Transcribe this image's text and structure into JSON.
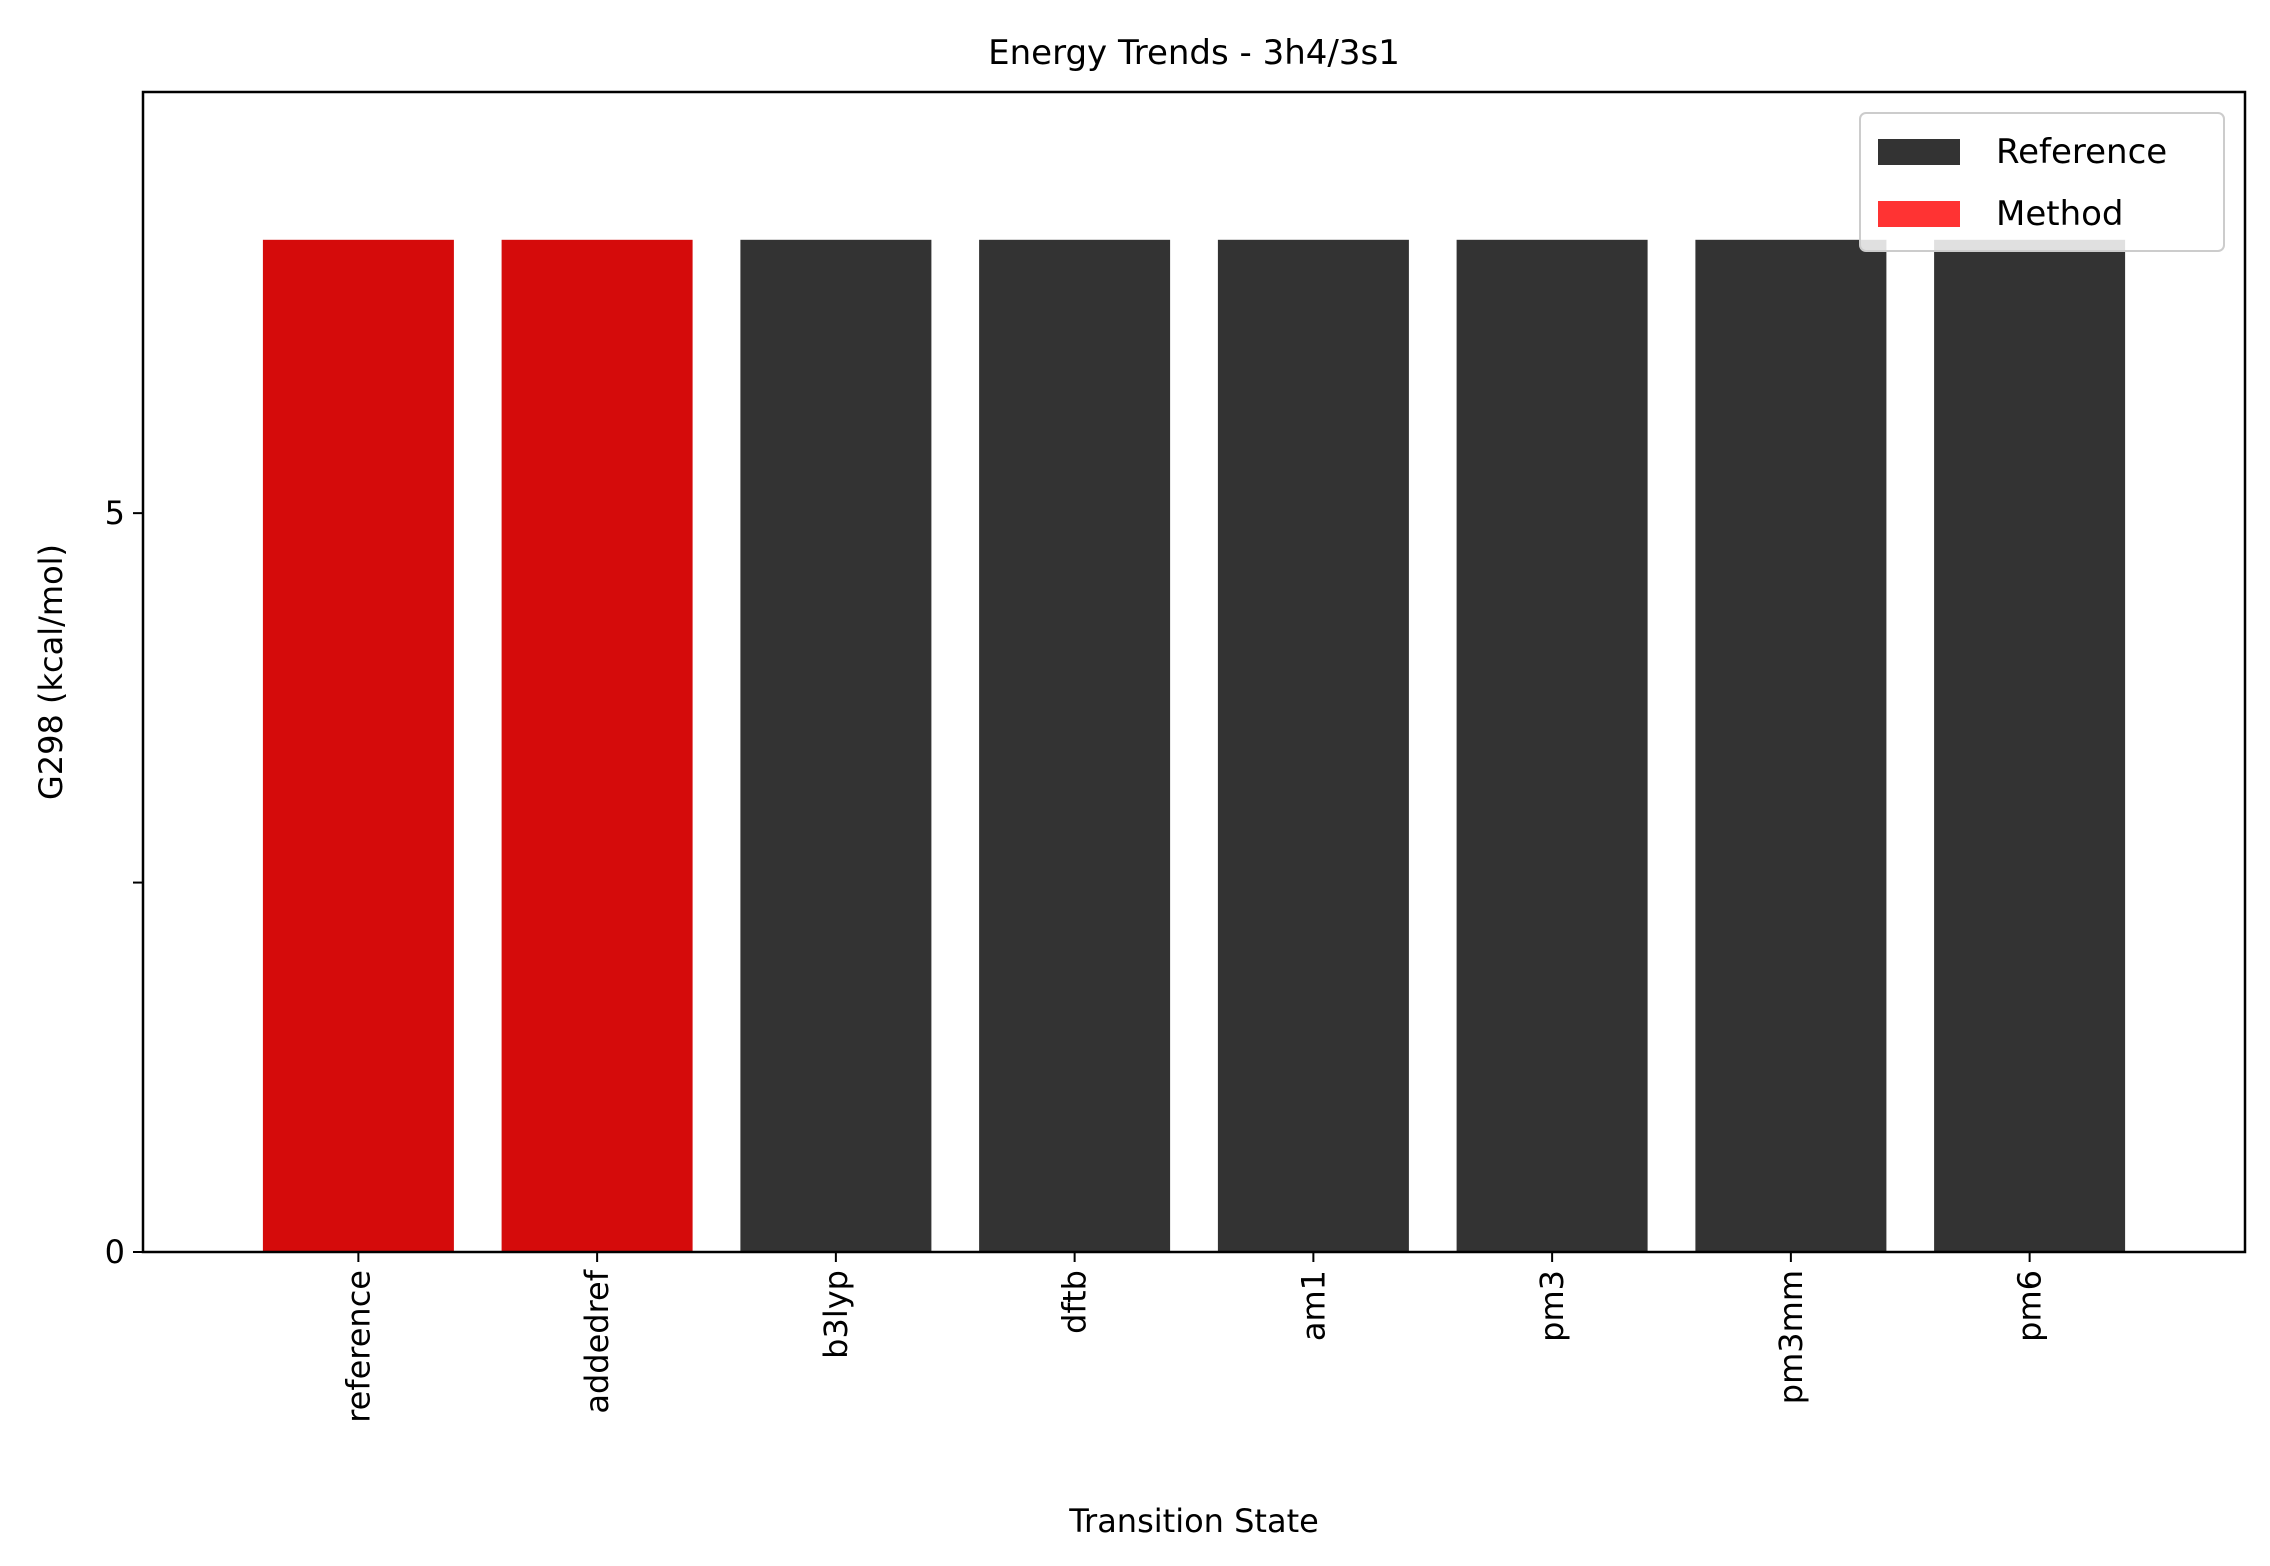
{
  "chart_data": {
    "type": "bar",
    "title": "Energy Trends - 3h4/3s1",
    "xlabel": "Transition State",
    "ylabel": "G298 (kcal/mol)",
    "categories": [
      "reference",
      "addedref",
      "b3lyp",
      "dftb",
      "am1",
      "pm3",
      "pm3mm",
      "pm6"
    ],
    "values": [
      6.85,
      6.85,
      6.85,
      6.85,
      6.85,
      6.85,
      6.85,
      6.85
    ],
    "bar_groups": [
      "Method",
      "Method",
      "Reference",
      "Reference",
      "Reference",
      "Reference",
      "Reference",
      "Reference"
    ],
    "ylim": [
      0,
      7.85
    ],
    "yticks": [
      {
        "value": 0,
        "label": "0"
      },
      {
        "value": 2.5,
        "label": ""
      },
      {
        "value": 5,
        "label": "5"
      }
    ],
    "grid": false,
    "legend": {
      "placement": "top-right",
      "entries": [
        {
          "label": "Reference",
          "color": "#333333"
        },
        {
          "label": "Method",
          "color": "#ff3333"
        }
      ]
    },
    "colors": {
      "Reference": "#333333",
      "Method": "#d50b0b"
    }
  }
}
